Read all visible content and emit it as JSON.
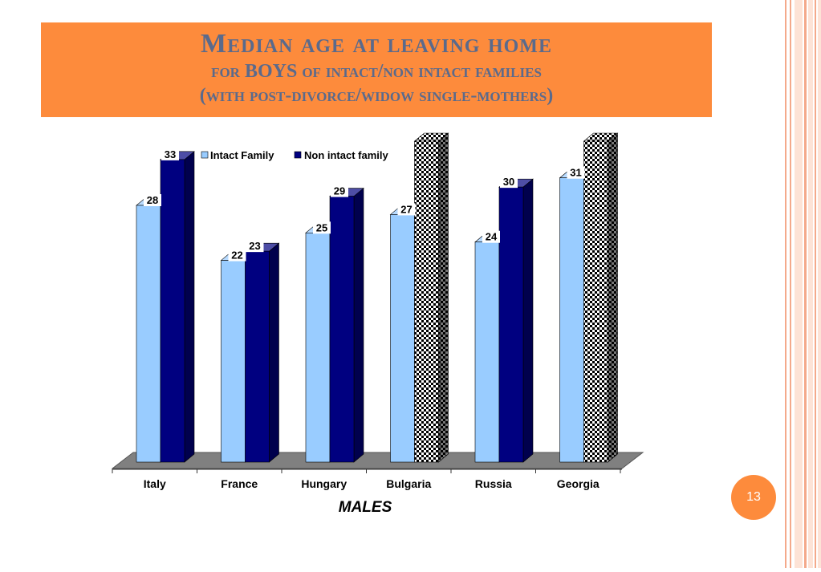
{
  "slide": {
    "title_line1": "Median age at leaving home",
    "title_line2": "for BOYS of intact/non intact families",
    "title_line3": "(with post-divorce/widow single-mothers)",
    "page_number": "13"
  },
  "colors": {
    "title_bg": "#fd8b3c",
    "title_text": "#5a6a8c",
    "intact": "#99ccff",
    "non_intact": "#000080",
    "floor": "#808080",
    "right_stripe_dark": "#f4a98a",
    "right_stripe_light": "#fde3d6"
  },
  "chart_data": {
    "type": "bar",
    "categories": [
      "Italy",
      "France",
      "Hungary",
      "Bulgaria",
      "Russia",
      "Georgia"
    ],
    "series": [
      {
        "name": "Intact Family",
        "values": [
          28,
          22,
          25,
          27,
          24,
          31
        ]
      },
      {
        "name": "Non intact family",
        "values": [
          33,
          23,
          29,
          null,
          30,
          null
        ]
      }
    ],
    "xlabel": "MALES",
    "ylabel": "",
    "ylim": [
      0,
      35
    ],
    "legend": "top",
    "grid": false,
    "three_d": true,
    "missing_pattern": "checkered"
  }
}
